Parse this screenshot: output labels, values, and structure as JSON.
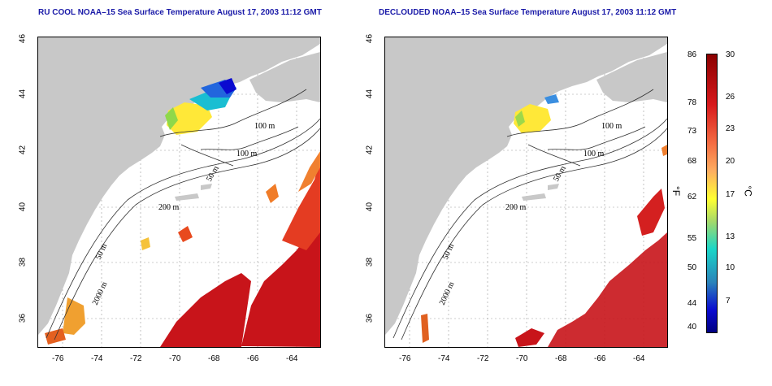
{
  "left_title": "RU COOL NOAA–15 Sea Surface Temperature August 17, 2003 11:12 GMT",
  "right_title": "DECLOUDED NOAA–15 Sea Surface Temperature August 17, 2003 11:12 GMT",
  "lat_ticks": [
    "46",
    "44",
    "42",
    "40",
    "38",
    "36"
  ],
  "lon_ticks": [
    "-76",
    "-74",
    "-72",
    "-70",
    "-68",
    "-66",
    "-64"
  ],
  "contour_labels": {
    "c100a": "100 m",
    "c100b": "100 m",
    "c50a": "50 m",
    "c200": "200 m",
    "c50b": "50 m",
    "c2000": "2000 m"
  },
  "colorbar": {
    "fahrenheit_ticks": [
      "86",
      "78",
      "73",
      "68",
      "62",
      "55",
      "50",
      "44",
      "40"
    ],
    "celsius_ticks": [
      "30",
      "26",
      "23",
      "20",
      "17",
      "13",
      "10",
      "7"
    ],
    "unit_f": "°F",
    "unit_c": "°C"
  },
  "colors": {
    "title": "#1a1aa8",
    "land": "#c8c8c8",
    "ocean": "#ffffff",
    "warm": "#c8141a",
    "cold": "#0a0ad0"
  }
}
